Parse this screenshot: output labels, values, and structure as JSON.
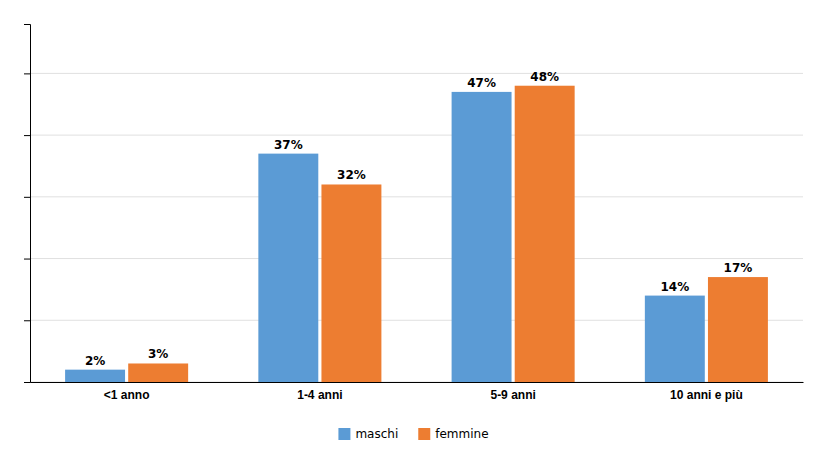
{
  "chart_data": {
    "type": "bar",
    "categories": [
      "<1 anno",
      "1-4 anni",
      "5-9 anni",
      "10 anni e più"
    ],
    "series": [
      {
        "name": "maschi",
        "color": "#5B9BD5",
        "values": [
          2,
          37,
          47,
          14
        ],
        "value_labels": [
          "2%",
          "37%",
          "47%",
          "14%"
        ]
      },
      {
        "name": "femmine",
        "color": "#ED7D31",
        "values": [
          3,
          32,
          48,
          17
        ],
        "value_labels": [
          "3%",
          "32%",
          "48%",
          "17%"
        ]
      }
    ],
    "ylim": [
      0,
      58
    ],
    "yticks": [
      0,
      10,
      20,
      30,
      40,
      50
    ],
    "grid": true,
    "legend": "bottom",
    "data_labels": true,
    "tick_labels": "x"
  }
}
